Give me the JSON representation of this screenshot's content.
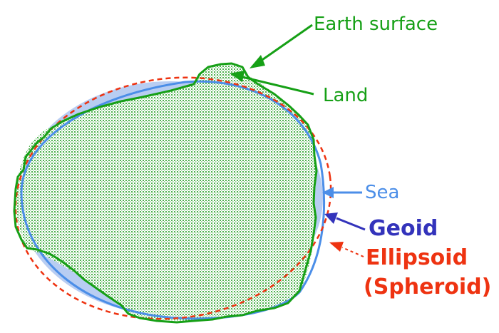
{
  "labels": {
    "earth_surface": "Earth surface",
    "land": "Land",
    "sea": "Sea",
    "geoid": "Geoid",
    "ellipsoid": "Ellipsoid",
    "spheroid": "(Spheroid)"
  },
  "colors": {
    "land": "#16a016",
    "land_fill": "#7fd07f",
    "sea": "#4b8ee8",
    "sea_fill": "#b8cdf2",
    "geoid": "#3333bb",
    "ellipsoid": "#ee3311"
  }
}
